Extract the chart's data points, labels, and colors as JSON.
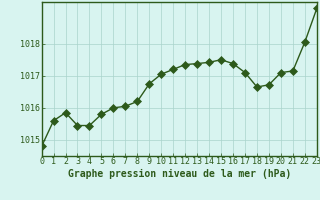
{
  "x": [
    0,
    1,
    2,
    3,
    4,
    5,
    6,
    7,
    8,
    9,
    10,
    11,
    12,
    13,
    14,
    15,
    16,
    17,
    18,
    19,
    20,
    21,
    22,
    23
  ],
  "y": [
    1014.8,
    1015.6,
    1015.85,
    1015.45,
    1015.45,
    1015.8,
    1016.0,
    1016.05,
    1016.2,
    1016.75,
    1017.05,
    1017.2,
    1017.35,
    1017.38,
    1017.42,
    1017.5,
    1017.38,
    1017.1,
    1016.65,
    1016.72,
    1017.1,
    1017.15,
    1018.05,
    1019.1
  ],
  "xlim": [
    0,
    23
  ],
  "ylim": [
    1014.5,
    1019.3
  ],
  "yticks": [
    1015,
    1016,
    1017,
    1018
  ],
  "xticks": [
    0,
    1,
    2,
    3,
    4,
    5,
    6,
    7,
    8,
    9,
    10,
    11,
    12,
    13,
    14,
    15,
    16,
    17,
    18,
    19,
    20,
    21,
    22,
    23
  ],
  "xlabel": "Graphe pression niveau de la mer (hPa)",
  "line_color": "#2d5a1b",
  "marker_color": "#2d5a1b",
  "bg_color": "#d8f4f0",
  "grid_color": "#aad4cc",
  "spine_color": "#2d5a1b",
  "tick_color": "#2d5a1b",
  "xlabel_fontsize": 7.0,
  "tick_fontsize": 6.0,
  "line_width": 1.0,
  "marker_size": 4
}
